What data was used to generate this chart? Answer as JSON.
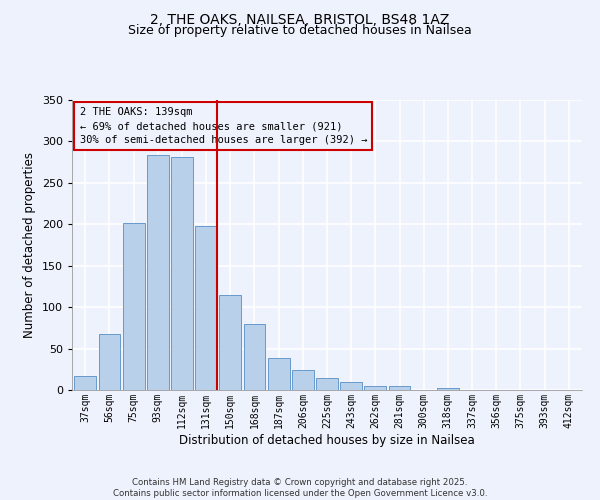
{
  "title": "2, THE OAKS, NAILSEA, BRISTOL, BS48 1AZ",
  "subtitle": "Size of property relative to detached houses in Nailsea",
  "xlabel": "Distribution of detached houses by size in Nailsea",
  "ylabel": "Number of detached properties",
  "bar_labels": [
    "37sqm",
    "56sqm",
    "75sqm",
    "93sqm",
    "112sqm",
    "131sqm",
    "150sqm",
    "168sqm",
    "187sqm",
    "206sqm",
    "225sqm",
    "243sqm",
    "262sqm",
    "281sqm",
    "300sqm",
    "318sqm",
    "337sqm",
    "356sqm",
    "375sqm",
    "393sqm",
    "412sqm"
  ],
  "bar_values": [
    17,
    68,
    201,
    284,
    281,
    198,
    115,
    80,
    39,
    24,
    14,
    10,
    5,
    5,
    0,
    2,
    0,
    0,
    0,
    0,
    0
  ],
  "bar_color": "#b8d0ea",
  "bar_edgecolor": "#6699cc",
  "vline_x_index": 5,
  "vline_color": "#cc0000",
  "annotation_text": "2 THE OAKS: 139sqm\n← 69% of detached houses are smaller (921)\n30% of semi-detached houses are larger (392) →",
  "annotation_box_edgecolor": "#cc0000",
  "ylim": [
    0,
    350
  ],
  "yticks": [
    0,
    50,
    100,
    150,
    200,
    250,
    300,
    350
  ],
  "background_color": "#eef2fc",
  "grid_color": "#ffffff",
  "footer_line1": "Contains HM Land Registry data © Crown copyright and database right 2025.",
  "footer_line2": "Contains public sector information licensed under the Open Government Licence v3.0."
}
